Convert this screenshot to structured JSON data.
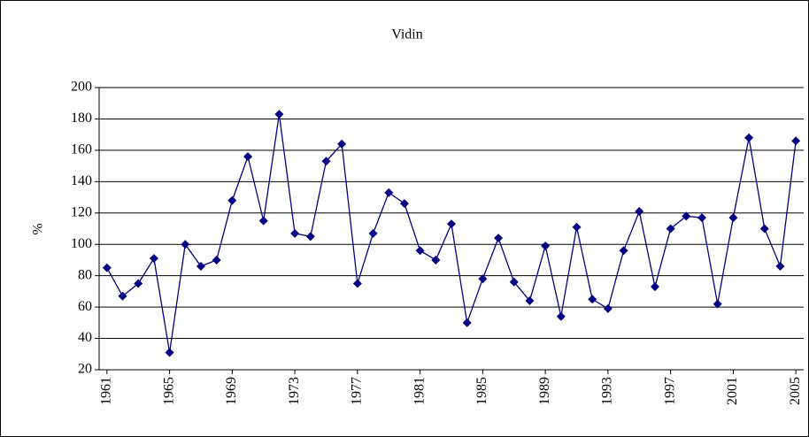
{
  "chart_data": {
    "type": "line",
    "title": "Vidin",
    "y_label": "%",
    "x": [
      1961,
      1962,
      1963,
      1964,
      1965,
      1966,
      1967,
      1968,
      1969,
      1970,
      1971,
      1972,
      1973,
      1974,
      1975,
      1976,
      1977,
      1978,
      1979,
      1980,
      1981,
      1982,
      1983,
      1984,
      1985,
      1986,
      1987,
      1988,
      1989,
      1990,
      1991,
      1992,
      1993,
      1994,
      1995,
      1996,
      1997,
      1998,
      1999,
      2000,
      2001,
      2002,
      2003,
      2004,
      2005
    ],
    "series": [
      {
        "color": "#000080",
        "values": [
          85,
          67,
          75,
          91,
          31,
          100,
          86,
          90,
          128,
          156,
          115,
          183,
          107,
          105,
          153,
          164,
          75,
          107,
          133,
          126,
          96,
          90,
          113,
          50,
          78,
          104,
          76,
          64,
          99,
          54,
          111,
          65,
          59,
          96,
          121,
          73,
          110,
          118,
          117,
          62,
          117,
          168,
          110,
          86,
          166
        ]
      }
    ],
    "xlim": [
      1960.5,
      2005.5
    ],
    "xticks": [
      1961,
      1965,
      1969,
      1973,
      1977,
      1981,
      1985,
      1989,
      1993,
      1997,
      2001,
      2005
    ],
    "ylim": [
      20,
      200
    ],
    "yticks": [
      20,
      40,
      60,
      80,
      100,
      120,
      140,
      160,
      180,
      200
    ],
    "grid": true
  }
}
